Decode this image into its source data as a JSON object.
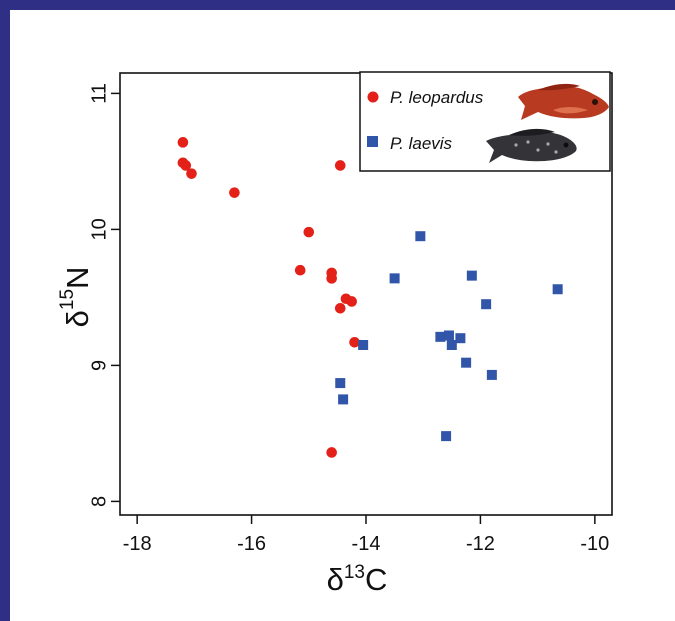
{
  "chart_data": {
    "type": "scatter",
    "title": "",
    "xlabel": "δ13C",
    "ylabel": "δ15N",
    "xlabel_parts": {
      "base": "δ",
      "sup": "13",
      "rest": "C"
    },
    "ylabel_parts": {
      "base": "δ",
      "sup": "15",
      "rest": "N"
    },
    "xlim": [
      -18.3,
      -9.7
    ],
    "ylim": [
      7.9,
      11.15
    ],
    "x_ticks": [
      -18,
      -16,
      -14,
      -12,
      -10
    ],
    "y_ticks": [
      8,
      9,
      10,
      11
    ],
    "x_tick_labels": [
      "-18",
      "-16",
      "-14",
      "-12",
      "-10"
    ],
    "y_tick_labels": [
      "8",
      "9",
      "10",
      "11"
    ],
    "grid": false,
    "legend_position": "top-right",
    "series": [
      {
        "name": "P. leopardus",
        "marker": "circle",
        "color": "#e32119",
        "points": [
          [
            -17.2,
            10.64
          ],
          [
            -17.2,
            10.49
          ],
          [
            -17.15,
            10.47
          ],
          [
            -17.05,
            10.41
          ],
          [
            -16.3,
            10.27
          ],
          [
            -14.45,
            10.47
          ],
          [
            -15.0,
            9.98
          ],
          [
            -15.15,
            9.7
          ],
          [
            -14.6,
            9.68
          ],
          [
            -14.6,
            9.64
          ],
          [
            -14.35,
            9.49
          ],
          [
            -14.25,
            9.47
          ],
          [
            -14.45,
            9.42
          ],
          [
            -14.2,
            9.17
          ],
          [
            -14.6,
            8.36
          ]
        ]
      },
      {
        "name": "P. laevis",
        "marker": "square",
        "color": "#3155a8",
        "points": [
          [
            -13.05,
            9.95
          ],
          [
            -13.5,
            9.64
          ],
          [
            -12.15,
            9.66
          ],
          [
            -11.9,
            9.45
          ],
          [
            -10.65,
            9.56
          ],
          [
            -12.7,
            9.21
          ],
          [
            -12.55,
            9.22
          ],
          [
            -12.35,
            9.2
          ],
          [
            -12.5,
            9.15
          ],
          [
            -14.05,
            9.15
          ],
          [
            -12.25,
            9.02
          ],
          [
            -11.8,
            8.93
          ],
          [
            -14.45,
            8.87
          ],
          [
            -14.4,
            8.75
          ],
          [
            -12.6,
            8.48
          ]
        ]
      }
    ]
  },
  "legend": {
    "icons": [
      "red-fish-icon",
      "dark-fish-icon"
    ]
  }
}
